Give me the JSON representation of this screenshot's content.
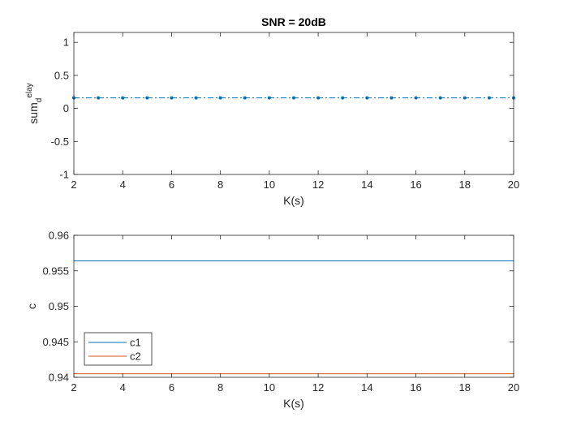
{
  "figure": {
    "background": "#ffffff",
    "axis_color": "#262626"
  },
  "chart_data": [
    {
      "type": "line",
      "title": "SNR = 20dB",
      "xlabel": "K(s)",
      "ylabel": {
        "base": "sum",
        "subscript": "d",
        "superscript": "elay"
      },
      "xlim": [
        2,
        20
      ],
      "ylim": [
        -1,
        1.15
      ],
      "xticks": [
        2,
        4,
        6,
        8,
        10,
        12,
        14,
        16,
        18,
        20
      ],
      "xtick_labels": [
        "2",
        "4",
        "6",
        "8",
        "10",
        "12",
        "14",
        "16",
        "18",
        "20"
      ],
      "yticks": [
        -1,
        -0.5,
        0,
        0.5,
        1
      ],
      "ytick_labels": [
        "-1",
        "-0.5",
        "0",
        "0.5",
        "1"
      ],
      "grid": false,
      "series": [
        {
          "color": "#0072BD",
          "line_style": "dash-dot",
          "marker": "point",
          "x": [
            2,
            3,
            4,
            5,
            6,
            7,
            8,
            9,
            10,
            11,
            12,
            13,
            14,
            15,
            16,
            17,
            18,
            19,
            20
          ],
          "y": [
            0.16,
            0.16,
            0.16,
            0.16,
            0.16,
            0.16,
            0.16,
            0.16,
            0.16,
            0.16,
            0.16,
            0.16,
            0.16,
            0.16,
            0.16,
            0.16,
            0.16,
            0.16,
            0.16
          ]
        }
      ]
    },
    {
      "type": "line",
      "xlabel": "K(s)",
      "ylabel": "c",
      "xlim": [
        2,
        20
      ],
      "ylim": [
        0.94,
        0.96
      ],
      "xticks": [
        2,
        4,
        6,
        8,
        10,
        12,
        14,
        16,
        18,
        20
      ],
      "xtick_labels": [
        "2",
        "4",
        "6",
        "8",
        "10",
        "12",
        "14",
        "16",
        "18",
        "20"
      ],
      "yticks": [
        0.94,
        0.945,
        0.95,
        0.955,
        0.96
      ],
      "ytick_labels": [
        "0.94",
        "0.945",
        "0.95",
        "0.955",
        "0.96"
      ],
      "grid": false,
      "legend": {
        "placement": "bottom-left"
      },
      "series": [
        {
          "name": "c1",
          "color": "#0072BD",
          "line_style": "solid",
          "x": [
            2,
            20
          ],
          "y": [
            0.9564,
            0.9564
          ]
        },
        {
          "name": "c2",
          "color": "#D95319",
          "line_style": "solid",
          "x": [
            2,
            20
          ],
          "y": [
            0.9405,
            0.9405
          ]
        }
      ]
    }
  ]
}
